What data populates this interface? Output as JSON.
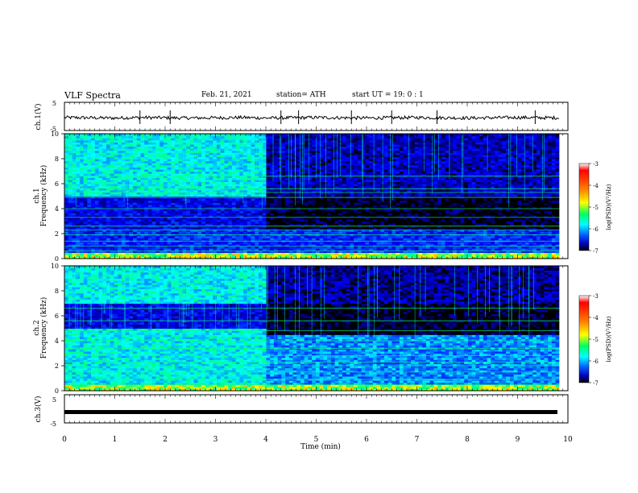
{
  "header": {
    "title": "VLF Spectra",
    "date": "Feb. 21, 2021",
    "station": "station= ATH",
    "start": "start  UT =   19: 0  : 1"
  },
  "chart_data": [
    {
      "type": "line",
      "panel": "ch1-voltage",
      "ylabel": "ch.1(V)",
      "yticks": [
        "5",
        "-5"
      ],
      "ylim": [
        -5,
        5
      ],
      "xlim": [
        0,
        10
      ],
      "series": [
        {
          "description_level_V": -0.5,
          "values": [
            [
              0.0,
              -0.4
            ],
            [
              0.5,
              -0.5
            ],
            [
              1.0,
              -0.6
            ],
            [
              1.5,
              -0.4
            ],
            [
              2.0,
              -0.5
            ],
            [
              2.5,
              -0.6
            ],
            [
              3.0,
              -0.5
            ],
            [
              3.5,
              -0.4
            ],
            [
              4.0,
              -0.6
            ],
            [
              4.5,
              -0.5
            ],
            [
              5.0,
              -0.4
            ],
            [
              5.5,
              -0.5
            ],
            [
              6.0,
              -0.6
            ],
            [
              6.5,
              -0.5
            ],
            [
              7.0,
              -0.4
            ],
            [
              7.5,
              -0.5
            ],
            [
              8.0,
              -0.6
            ],
            [
              8.5,
              -0.5
            ],
            [
              9.0,
              -0.4
            ],
            [
              9.5,
              -0.5
            ],
            [
              9.83,
              -0.5
            ]
          ]
        }
      ]
    },
    {
      "type": "heatmap",
      "panel": "ch1-spectrogram",
      "ylabel_top": "ch.1",
      "ylabel": "Frequency (kHz)",
      "yticks": [
        "0",
        "2",
        "4",
        "6",
        "8",
        "10"
      ],
      "ylim": [
        0,
        10
      ],
      "xlim": [
        0,
        10
      ],
      "colorbar": {
        "label": "log(PSD)(V²/Hz)",
        "ticks": [
          "-3",
          "-4",
          "-5",
          "-6",
          "-7"
        ],
        "range": [
          -7,
          -3
        ]
      },
      "regions_before_4min": {
        "5-10 kHz": -5.0,
        "2.3-5 kHz": -6.3,
        "0-2.3 kHz": -6.0
      },
      "regions_after_4min": {
        "5-10 kHz": -6.5,
        "2.3-5 kHz": -7.0,
        "0-2.3 kHz": -6.0
      }
    },
    {
      "type": "heatmap",
      "panel": "ch2-spectrogram",
      "ylabel_top": "ch.2",
      "ylabel": "Frequency (kHz)",
      "yticks": [
        "0",
        "2",
        "4",
        "6",
        "8",
        "10"
      ],
      "ylim": [
        0,
        10
      ],
      "xlim": [
        0,
        10
      ],
      "colorbar": {
        "label": "log(PSD)(V²/Hz)",
        "ticks": [
          "-3",
          "-4",
          "-5",
          "-6",
          "-7"
        ],
        "range": [
          -7,
          -3
        ]
      },
      "regions_before_4min": {
        "7-10 kHz": -5.0,
        "5-7 kHz": -6.3,
        "0-5 kHz": -5.0
      },
      "regions_after_4min": {
        "7-10 kHz": -6.6,
        "4.5-7 kHz": -7.0,
        "0-4.5 kHz": -5.5
      }
    },
    {
      "type": "line",
      "panel": "ch3-voltage",
      "ylabel": "ch.3(V)",
      "yticks": [
        "5",
        "-5"
      ],
      "ylim": [
        -5,
        5
      ],
      "xlim": [
        0,
        10
      ],
      "series": [
        {
          "values": [
            [
              0,
              -1.5
            ],
            [
              9.83,
              -1.5
            ]
          ]
        }
      ]
    }
  ],
  "xaxis": {
    "label": "Time (min)",
    "ticks": [
      "0",
      "1",
      "2",
      "3",
      "4",
      "5",
      "6",
      "7",
      "8",
      "9",
      "10"
    ]
  },
  "colors": {
    "colormap": [
      "#000080",
      "#0000ff",
      "#0080ff",
      "#00ffff",
      "#80ff80",
      "#ffff00",
      "#ff8000",
      "#ff0000",
      "#c00000"
    ]
  }
}
